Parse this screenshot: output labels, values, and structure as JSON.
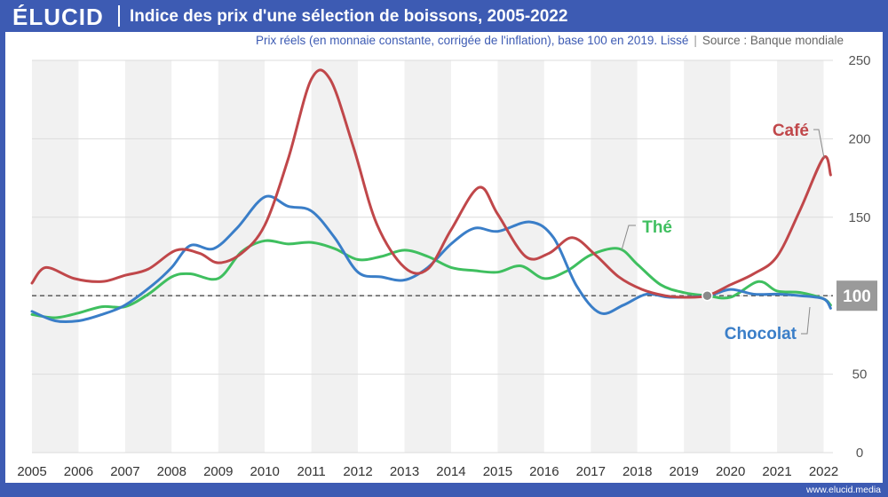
{
  "header": {
    "brand": "ÉLUCID",
    "title": "Indice des prix d'une sélection de boissons, 2005-2022"
  },
  "subtitle": {
    "text": "Prix réels (en monnaie constante, corrigée de l'inflation), base 100 en 2019. Lissé",
    "separator": "|",
    "source": "Source : Banque mondiale"
  },
  "footer": {
    "url": "www.elucid.media"
  },
  "colors": {
    "cafe": "#c0474a",
    "the": "#3fbf5f",
    "chocolat": "#3a7ec8",
    "brand": "#3d5bb3"
  },
  "chart_data": {
    "type": "line",
    "title": "Indice des prix d'une sélection de boissons, 2005-2022",
    "xlim": [
      2005,
      2022.2
    ],
    "ylim": [
      0,
      250
    ],
    "x_ticks": [
      "2005",
      "2006",
      "2007",
      "2008",
      "2009",
      "2010",
      "2011",
      "2012",
      "2013",
      "2014",
      "2015",
      "2016",
      "2017",
      "2018",
      "2019",
      "2020",
      "2021",
      "2022"
    ],
    "y_ticks": [
      "0",
      "50",
      "100",
      "150",
      "200",
      "250"
    ],
    "reference_line": {
      "value": 100,
      "label": "100"
    },
    "base_point": {
      "x": 2019.5,
      "y": 100
    },
    "series": [
      {
        "name": "Café",
        "points": [
          [
            2005,
            108
          ],
          [
            2005.3,
            118
          ],
          [
            2005.9,
            111
          ],
          [
            2006.5,
            109
          ],
          [
            2007,
            113
          ],
          [
            2007.5,
            117
          ],
          [
            2008.1,
            129
          ],
          [
            2008.6,
            127
          ],
          [
            2009,
            121
          ],
          [
            2009.5,
            127
          ],
          [
            2010,
            145
          ],
          [
            2010.5,
            187
          ],
          [
            2011,
            238
          ],
          [
            2011.4,
            238
          ],
          [
            2011.9,
            195
          ],
          [
            2012.4,
            146
          ],
          [
            2013,
            118
          ],
          [
            2013.5,
            117
          ],
          [
            2014,
            142
          ],
          [
            2014.6,
            169
          ],
          [
            2015,
            152
          ],
          [
            2015.6,
            125
          ],
          [
            2016.1,
            127
          ],
          [
            2016.6,
            137
          ],
          [
            2017.1,
            126
          ],
          [
            2017.6,
            112
          ],
          [
            2018.1,
            104
          ],
          [
            2018.6,
            100
          ],
          [
            2019,
            99
          ],
          [
            2019.5,
            100
          ],
          [
            2020,
            107
          ],
          [
            2020.5,
            114
          ],
          [
            2021,
            125
          ],
          [
            2021.5,
            155
          ],
          [
            2022,
            188
          ],
          [
            2022.15,
            177
          ]
        ]
      },
      {
        "name": "Thé",
        "points": [
          [
            2005,
            88
          ],
          [
            2005.5,
            86
          ],
          [
            2006,
            89
          ],
          [
            2006.5,
            93
          ],
          [
            2007,
            93
          ],
          [
            2007.5,
            101
          ],
          [
            2008,
            112
          ],
          [
            2008.4,
            114
          ],
          [
            2009,
            111
          ],
          [
            2009.5,
            128
          ],
          [
            2010,
            135
          ],
          [
            2010.5,
            133
          ],
          [
            2011,
            134
          ],
          [
            2011.5,
            130
          ],
          [
            2012,
            123
          ],
          [
            2012.5,
            125
          ],
          [
            2013,
            129
          ],
          [
            2013.5,
            125
          ],
          [
            2014,
            118
          ],
          [
            2014.5,
            116
          ],
          [
            2015,
            115
          ],
          [
            2015.5,
            119
          ],
          [
            2016,
            111
          ],
          [
            2016.5,
            116
          ],
          [
            2017,
            126
          ],
          [
            2017.6,
            130
          ],
          [
            2018,
            120
          ],
          [
            2018.5,
            107
          ],
          [
            2019,
            102
          ],
          [
            2019.5,
            100
          ],
          [
            2020,
            99
          ],
          [
            2020.6,
            109
          ],
          [
            2021,
            103
          ],
          [
            2021.5,
            102
          ],
          [
            2022,
            98
          ],
          [
            2022.15,
            94
          ]
        ]
      },
      {
        "name": "Chocolat",
        "points": [
          [
            2005,
            90
          ],
          [
            2005.5,
            84
          ],
          [
            2006,
            84
          ],
          [
            2006.5,
            88
          ],
          [
            2007,
            94
          ],
          [
            2007.6,
            107
          ],
          [
            2008,
            118
          ],
          [
            2008.4,
            132
          ],
          [
            2008.9,
            130
          ],
          [
            2009.4,
            143
          ],
          [
            2010,
            163
          ],
          [
            2010.5,
            157
          ],
          [
            2011,
            154
          ],
          [
            2011.5,
            137
          ],
          [
            2012,
            115
          ],
          [
            2012.5,
            112
          ],
          [
            2013,
            110
          ],
          [
            2013.5,
            118
          ],
          [
            2014,
            133
          ],
          [
            2014.5,
            143
          ],
          [
            2015,
            141
          ],
          [
            2015.7,
            147
          ],
          [
            2016.2,
            137
          ],
          [
            2016.7,
            106
          ],
          [
            2017.2,
            89
          ],
          [
            2017.7,
            94
          ],
          [
            2018.2,
            101
          ],
          [
            2018.7,
            99
          ],
          [
            2019.5,
            100
          ],
          [
            2020,
            104
          ],
          [
            2020.5,
            101
          ],
          [
            2021,
            101
          ],
          [
            2021.5,
            100
          ],
          [
            2022,
            98
          ],
          [
            2022.15,
            92
          ]
        ]
      }
    ],
    "labels": {
      "cafe": "Café",
      "the": "Thé",
      "chocolat": "Chocolat"
    }
  }
}
